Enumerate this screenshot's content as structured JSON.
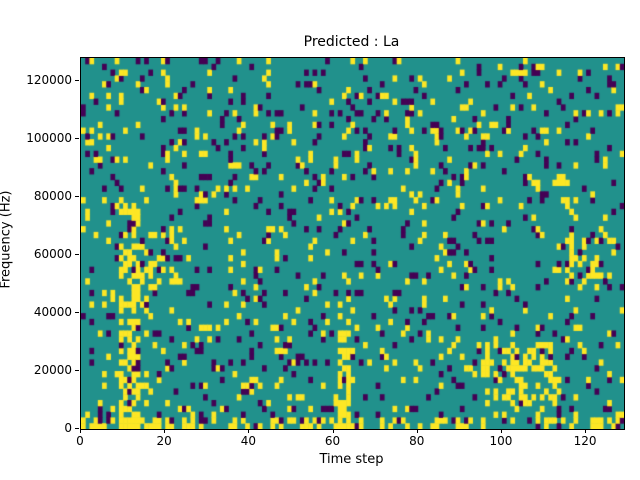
{
  "figure": {
    "title": "Predicted : La",
    "xlabel": "Time step",
    "ylabel": "Frequency (Hz)"
  },
  "chart_data": {
    "type": "heatmap",
    "title": "Predicted : La",
    "xlabel": "Time step",
    "ylabel": "Frequency (Hz)",
    "xlim": [
      0,
      129
    ],
    "ylim": [
      0,
      128000
    ],
    "xticks": [
      0,
      20,
      40,
      60,
      80,
      100,
      120
    ],
    "yticks": [
      0,
      20000,
      40000,
      60000,
      80000,
      100000,
      120000
    ],
    "grid": false,
    "legend": "none",
    "description": "Ternary-valued spectrogram mask: dominant mid value (teal) with sparse high (yellow) and low (dark purple) cells scattered over 129 time steps by 64 frequency bins",
    "colormap": {
      "low": "#440154",
      "mid": "#21918c",
      "high": "#fde725"
    },
    "cols": 129,
    "rows": 64,
    "seed": 1337,
    "base_probabilities": {
      "high": 0.065,
      "low": 0.055
    },
    "features": [
      {
        "name": "strong-yellow-streak-left",
        "col_start": 9,
        "col_end": 13,
        "row_start": 0,
        "row_end": 38,
        "boost_high": 0.45,
        "boost_low": 0.0
      },
      {
        "name": "yellow-streak-mid",
        "col_start": 61,
        "col_end": 63,
        "row_start": 0,
        "row_end": 16,
        "boost_high": 0.55,
        "boost_low": 0.0
      },
      {
        "name": "bottom-edge-yellow-band",
        "col_start": 0,
        "col_end": 128,
        "row_start": 0,
        "row_end": 1,
        "boost_high": 0.28,
        "boost_low": 0.0
      },
      {
        "name": "yellow-cluster-right-low",
        "col_start": 96,
        "col_end": 112,
        "row_start": 4,
        "row_end": 14,
        "boost_high": 0.22,
        "boost_low": 0.0
      },
      {
        "name": "yellow-cluster-far-right",
        "col_start": 116,
        "col_end": 122,
        "row_start": 24,
        "row_end": 32,
        "boost_high": 0.22,
        "boost_low": 0.0
      },
      {
        "name": "yellow-cluster-left-mid",
        "col_start": 14,
        "col_end": 22,
        "row_start": 24,
        "row_end": 34,
        "boost_high": 0.12,
        "boost_low": 0.05
      },
      {
        "name": "purple-upper-scatter",
        "col_start": 0,
        "col_end": 128,
        "row_start": 44,
        "row_end": 63,
        "boost_high": 0.0,
        "boost_low": 0.02
      }
    ]
  }
}
